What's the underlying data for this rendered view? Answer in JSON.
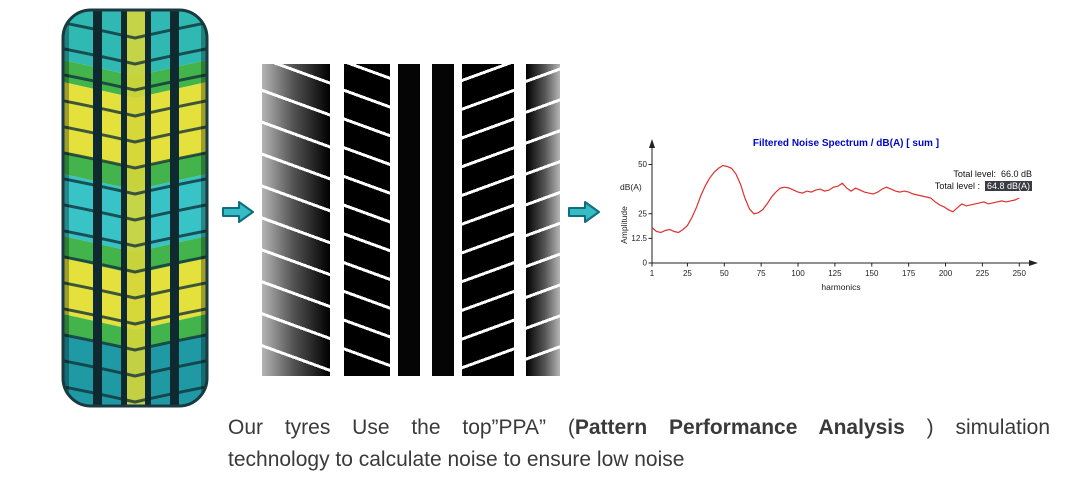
{
  "images": {
    "tire_colors": {
      "teal": "#2fb9b2",
      "green": "#43b44b",
      "yellow": "#e4e13c",
      "cyan": "#38c3c6",
      "dark_groove": "#0e2a30"
    },
    "pattern_colors": {
      "band_black": "#050505",
      "shoulder_gray": "#b5b5b5",
      "groove_white": "#ffffff"
    }
  },
  "arrows": {
    "fill": "#35bcc4",
    "stroke": "#0e6e7e"
  },
  "chart_data": {
    "type": "line",
    "title": "Filtered Noise Spectrum / dB(A) [ sum ]",
    "title_color": "#0008c8",
    "xlabel": "harmonics",
    "ylabel": "Amplitude",
    "y_unit_label": "dB(A)",
    "x_ticks": [
      1,
      25,
      50,
      75,
      100,
      125,
      150,
      175,
      200,
      225,
      250
    ],
    "y_ticks": [
      0,
      12.5,
      25,
      50
    ],
    "xlim": [
      1,
      256
    ],
    "ylim": [
      0,
      57
    ],
    "grid": false,
    "legend_position": "none",
    "line_color": "#e03030",
    "annotations": [
      {
        "label": "Total level:",
        "value": "66.0 dB",
        "highlighted": false
      },
      {
        "label": "Total level :",
        "value": "64.8 dB(A)",
        "highlighted": true
      }
    ],
    "series": [
      {
        "name": "filtered_noise_spectrum",
        "x": [
          1,
          4,
          7,
          10,
          13,
          16,
          19,
          22,
          25,
          28,
          31,
          34,
          37,
          40,
          43,
          46,
          49,
          52,
          55,
          58,
          61,
          64,
          67,
          70,
          73,
          76,
          79,
          82,
          85,
          88,
          91,
          94,
          97,
          100,
          103,
          106,
          109,
          112,
          115,
          118,
          121,
          124,
          127,
          130,
          133,
          136,
          139,
          142,
          145,
          148,
          151,
          154,
          157,
          160,
          163,
          166,
          169,
          172,
          175,
          178,
          181,
          184,
          187,
          190,
          193,
          196,
          199,
          202,
          205,
          208,
          211,
          214,
          217,
          220,
          223,
          226,
          229,
          232,
          235,
          238,
          241,
          244,
          247,
          250
        ],
        "y": [
          18,
          16,
          15.5,
          16.5,
          17,
          16,
          15.5,
          17,
          19,
          23,
          28,
          34,
          39,
          43,
          46,
          48,
          49.5,
          49,
          48,
          45,
          40,
          33,
          27.5,
          25,
          25.5,
          27,
          30,
          33.5,
          36,
          38,
          38.5,
          38,
          37,
          36,
          35.5,
          36.5,
          36,
          37,
          37.5,
          36.5,
          37,
          38.5,
          39,
          40.5,
          38,
          36.5,
          38,
          37,
          36,
          35.5,
          35,
          36,
          37.5,
          38.5,
          37.5,
          36.5,
          36,
          36.5,
          36,
          35,
          34.5,
          34,
          33.5,
          33,
          31,
          29.5,
          28.5,
          27,
          26,
          28,
          30,
          29,
          29.5,
          30,
          30.5,
          31,
          30,
          30.5,
          31,
          31.5,
          31,
          31.5,
          32,
          33
        ]
      }
    ]
  },
  "caption": {
    "line1_pre": "Our tyres Use the top”PPA” (",
    "line1_bold": "Pattern Performance Analysis",
    "line1_post": " ) simulation",
    "line2": "technology to calculate noise to ensure low noise"
  }
}
